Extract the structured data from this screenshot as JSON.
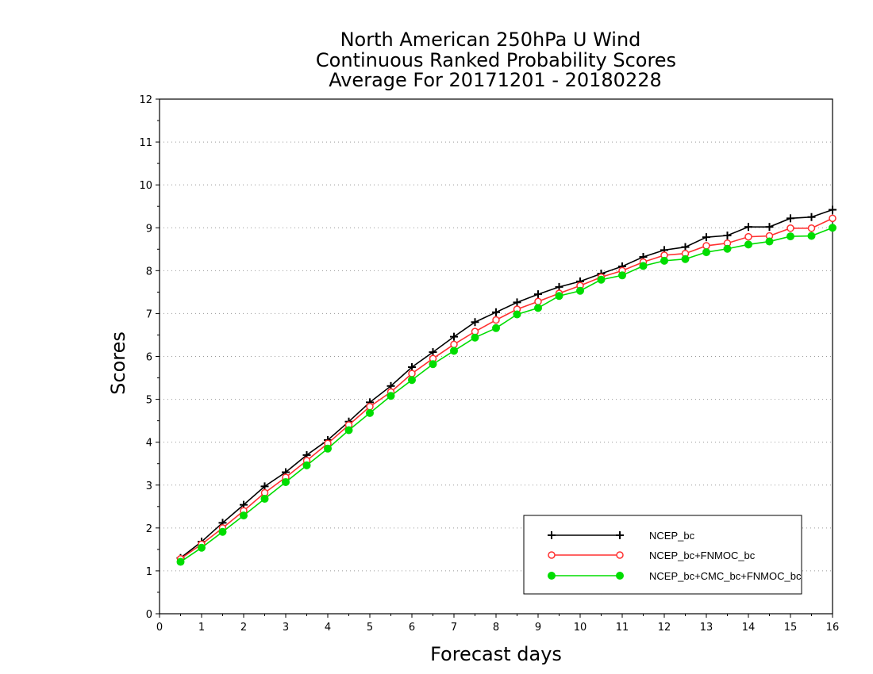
{
  "chart_data": {
    "type": "line",
    "title": [
      "North American 250hPa U Wind",
      "Continuous Ranked Probability Scores",
      "Average For 20171201 - 20180228"
    ],
    "xlabel": "Forecast days",
    "ylabel": "Scores",
    "xlim": [
      0,
      16
    ],
    "ylim": [
      0,
      12
    ],
    "xticks": [
      "0",
      "1",
      "2",
      "3",
      "4",
      "5",
      "6",
      "7",
      "8",
      "9",
      "10",
      "11",
      "12",
      "13",
      "14",
      "15",
      "16"
    ],
    "yticks": [
      "0",
      "1",
      "2",
      "3",
      "4",
      "5",
      "6",
      "7",
      "8",
      "9",
      "10",
      "11",
      "12"
    ],
    "grid": "horizontal dotted",
    "legend_position": "bottom-right",
    "x": [
      0.5,
      1,
      1.5,
      2,
      2.5,
      3,
      3.5,
      4,
      4.5,
      5,
      5.5,
      6,
      6.5,
      7,
      7.5,
      8,
      8.5,
      9,
      9.5,
      10,
      10.5,
      11,
      11.5,
      12,
      12.5,
      13,
      13.5,
      14,
      14.5,
      15,
      15.5,
      16
    ],
    "series": [
      {
        "name": "NCEP_bc",
        "color": "#000000",
        "marker": "plus",
        "values": [
          1.3,
          1.68,
          2.12,
          2.54,
          2.97,
          3.3,
          3.7,
          4.05,
          4.48,
          4.93,
          5.31,
          5.75,
          6.1,
          6.46,
          6.8,
          7.03,
          7.26,
          7.45,
          7.62,
          7.75,
          7.93,
          8.1,
          8.32,
          8.48,
          8.55,
          8.78,
          8.82,
          9.02,
          9.02,
          9.22,
          9.25,
          9.42
        ]
      },
      {
        "name": "NCEP_bc+FNMOC_bc",
        "color": "#ff3030",
        "marker": "open-circle",
        "values": [
          1.28,
          1.62,
          2.0,
          2.4,
          2.82,
          3.18,
          3.57,
          3.97,
          4.4,
          4.83,
          5.17,
          5.6,
          5.95,
          6.28,
          6.58,
          6.85,
          7.1,
          7.28,
          7.47,
          7.65,
          7.85,
          8.0,
          8.2,
          8.36,
          8.4,
          8.58,
          8.64,
          8.79,
          8.81,
          8.99,
          8.99,
          9.22
        ]
      },
      {
        "name": "NCEP_bc+CMC_bc+FNMOC_bc",
        "color": "#00dd00",
        "marker": "filled-circle",
        "values": [
          1.21,
          1.54,
          1.91,
          2.29,
          2.68,
          3.07,
          3.46,
          3.85,
          4.28,
          4.68,
          5.08,
          5.45,
          5.82,
          6.13,
          6.44,
          6.66,
          6.98,
          7.13,
          7.41,
          7.53,
          7.79,
          7.89,
          8.11,
          8.23,
          8.27,
          8.43,
          8.51,
          8.61,
          8.68,
          8.8,
          8.81,
          9.0
        ]
      }
    ]
  }
}
